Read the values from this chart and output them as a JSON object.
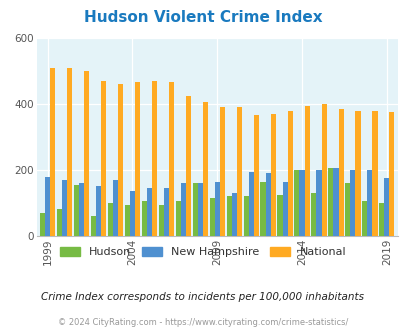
{
  "title": "Hudson Violent Crime Index",
  "title_color": "#1a7abf",
  "years": [
    1999,
    2000,
    2001,
    2002,
    2003,
    2004,
    2005,
    2006,
    2007,
    2008,
    2009,
    2010,
    2011,
    2012,
    2013,
    2014,
    2015,
    2016,
    2017,
    2018,
    2019
  ],
  "hudson": [
    70,
    83,
    155,
    60,
    100,
    95,
    105,
    95,
    105,
    160,
    115,
    120,
    120,
    165,
    125,
    200,
    130,
    205,
    160,
    105,
    100
  ],
  "new_hampshire": [
    180,
    170,
    160,
    150,
    170,
    135,
    145,
    145,
    160,
    160,
    165,
    130,
    195,
    190,
    165,
    200,
    200,
    205,
    200,
    200,
    175
  ],
  "national": [
    510,
    510,
    500,
    470,
    460,
    465,
    470,
    465,
    425,
    405,
    390,
    390,
    365,
    370,
    380,
    395,
    400,
    385,
    380,
    380,
    375
  ],
  "hudson_color": "#77bb44",
  "nh_color": "#4f90d0",
  "national_color": "#ffaa22",
  "bg_color": "#e4f3f8",
  "ylim": [
    0,
    600
  ],
  "yticks": [
    0,
    200,
    400,
    600
  ],
  "tick_years": [
    1999,
    2004,
    2009,
    2014,
    2019
  ],
  "footnote1": "Crime Index corresponds to incidents per 100,000 inhabitants",
  "footnote2": "© 2024 CityRating.com - https://www.cityrating.com/crime-statistics/",
  "legend_labels": [
    "Hudson",
    "New Hampshire",
    "National"
  ]
}
